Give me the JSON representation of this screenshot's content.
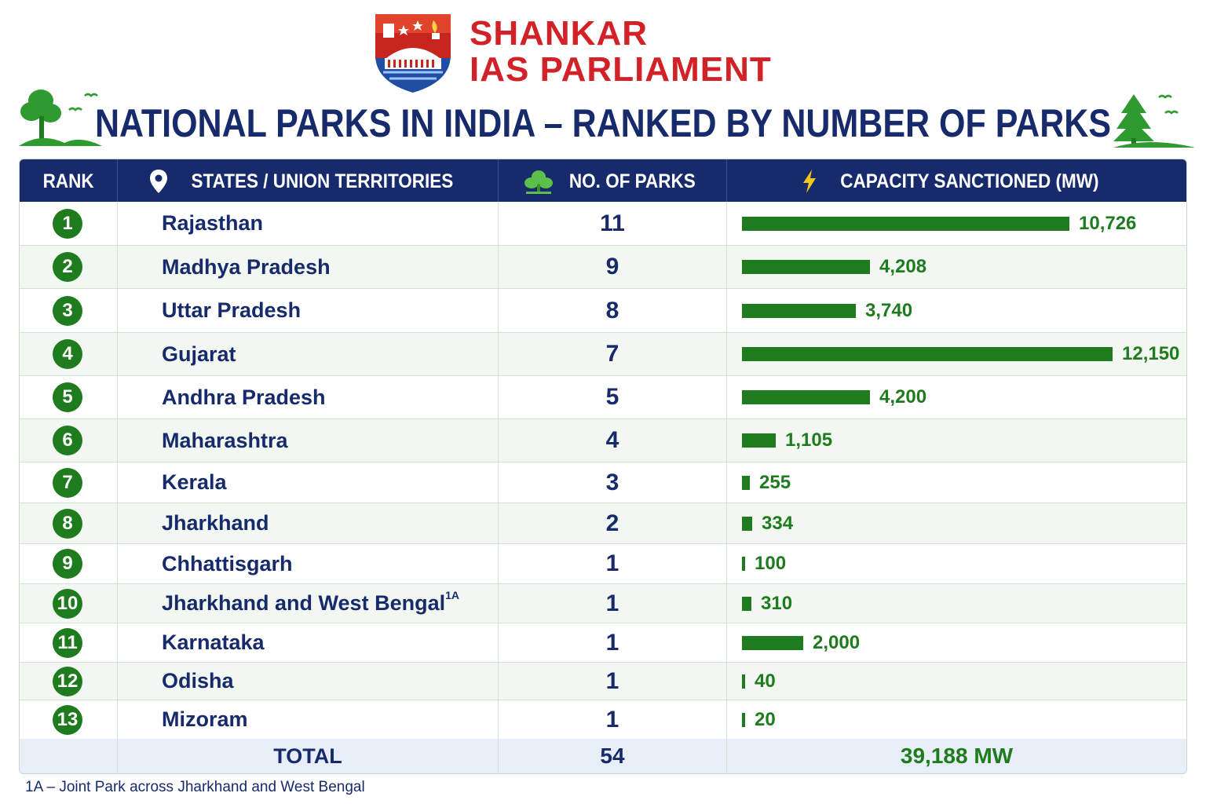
{
  "brand": {
    "line1": "SHANKAR",
    "line2": "IAS PARLIAMENT"
  },
  "title": "NATIONAL PARKS IN INDIA – RANKED BY NUMBER OF PARKS",
  "columns": {
    "rank": "RANK",
    "state": "STATES / UNION TERRITORIES",
    "parks": "NO. OF PARKS",
    "capacity": "CAPACITY SANCTIONED (MW)"
  },
  "icons": {
    "state_col": "location-pin-icon",
    "parks_col": "tree-icon",
    "capacity_col": "lightning-icon"
  },
  "colors": {
    "navy": "#172a6b",
    "green": "#1e7b1e",
    "brand_red": "#d32128",
    "alt_row": "#f2f8f1",
    "total_row": "#e7eef8"
  },
  "chart_data": {
    "type": "table",
    "bar_series": "capacity",
    "max_value": 12150,
    "rows": [
      {
        "rank": "1",
        "state": "Rajasthan",
        "sup": "",
        "parks": "11",
        "capacity": 10726,
        "capacity_label": "10,726"
      },
      {
        "rank": "2",
        "state": "Madhya Pradesh",
        "sup": "",
        "parks": "9",
        "capacity": 4208,
        "capacity_label": "4,208"
      },
      {
        "rank": "3",
        "state": "Uttar Pradesh",
        "sup": "",
        "parks": "8",
        "capacity": 3740,
        "capacity_label": "3,740"
      },
      {
        "rank": "4",
        "state": "Gujarat",
        "sup": "",
        "parks": "7",
        "capacity": 12150,
        "capacity_label": "12,150"
      },
      {
        "rank": "5",
        "state": "Andhra Pradesh",
        "sup": "",
        "parks": "5",
        "capacity": 4200,
        "capacity_label": "4,200"
      },
      {
        "rank": "6",
        "state": "Maharashtra",
        "sup": "",
        "parks": "4",
        "capacity": 1105,
        "capacity_label": "1,105"
      },
      {
        "rank": "7",
        "state": "Kerala",
        "sup": "",
        "parks": "3",
        "capacity": 255,
        "capacity_label": "255"
      },
      {
        "rank": "8",
        "state": "Jharkhand",
        "sup": "",
        "parks": "2",
        "capacity": 334,
        "capacity_label": "334"
      },
      {
        "rank": "9",
        "state": "Chhattisgarh",
        "sup": "",
        "parks": "1",
        "capacity": 100,
        "capacity_label": "100"
      },
      {
        "rank": "10",
        "state": "Jharkhand and West Bengal",
        "sup": "1A",
        "parks": "1",
        "capacity": 310,
        "capacity_label": "310"
      },
      {
        "rank": "11",
        "state": "Karnataka",
        "sup": "",
        "parks": "1",
        "capacity": 2000,
        "capacity_label": "2,000"
      },
      {
        "rank": "12",
        "state": "Odisha",
        "sup": "",
        "parks": "1",
        "capacity": 40,
        "capacity_label": "40"
      },
      {
        "rank": "13",
        "state": "Mizoram",
        "sup": "",
        "parks": "1",
        "capacity": 20,
        "capacity_label": "20"
      }
    ],
    "total": {
      "label": "TOTAL",
      "parks": "54",
      "capacity": "39,188 MW"
    }
  },
  "footnote": "1A – Joint Park across Jharkhand and West Bengal"
}
